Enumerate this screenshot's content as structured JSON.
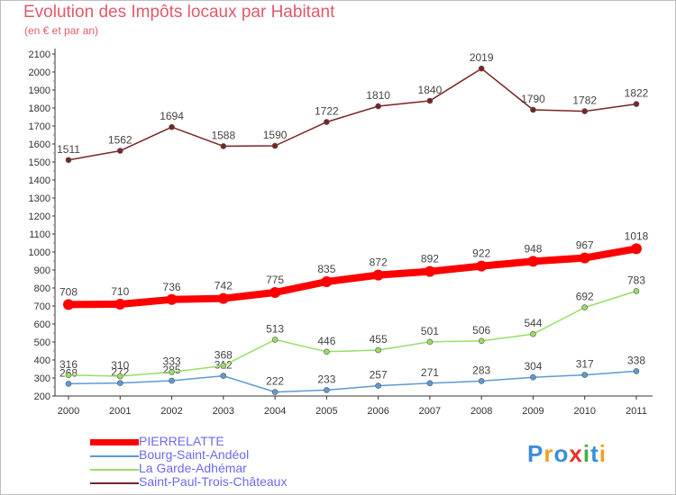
{
  "chart_data": {
    "type": "line",
    "title": "Evolution des Impôts locaux par Habitant",
    "subtitle": "(en € et par an)",
    "x": [
      "2000",
      "2001",
      "2002",
      "2003",
      "2004",
      "2005",
      "2006",
      "2007",
      "2008",
      "2009",
      "2010",
      "2011"
    ],
    "ylim": [
      200,
      2100
    ],
    "yticks": [
      200,
      300,
      400,
      500,
      600,
      700,
      800,
      900,
      1000,
      1100,
      1200,
      1300,
      1400,
      1500,
      1600,
      1700,
      1800,
      1900,
      2000,
      2100
    ],
    "grid": false,
    "legend_position": "bottom-left",
    "series": [
      {
        "name": "PIERRELATTE",
        "color": "#ff0000",
        "values": [
          708,
          710,
          736,
          742,
          775,
          835,
          872,
          892,
          922,
          948,
          967,
          1018
        ]
      },
      {
        "name": "Bourg-Saint-Andéol",
        "color": "#5b9bd5",
        "values": [
          268,
          272,
          285,
          312,
          222,
          233,
          257,
          271,
          283,
          304,
          317,
          338
        ]
      },
      {
        "name": "La Garde-Adhémar",
        "color": "#99dd66",
        "values": [
          316,
          310,
          333,
          368,
          513,
          446,
          455,
          501,
          506,
          544,
          692,
          783
        ]
      },
      {
        "name": "Saint-Paul-Trois-Châteaux",
        "color": "#7a2424",
        "values": [
          1511,
          1562,
          1694,
          1588,
          1590,
          1722,
          1810,
          1840,
          2019,
          1790,
          1782,
          1822
        ]
      }
    ]
  },
  "logo": {
    "text": "Proxiti",
    "letters": [
      "P",
      "r",
      "o",
      "x",
      "i",
      "t",
      "i"
    ],
    "colors": [
      "#3a8fd8",
      "#f0a020",
      "#3a8fd8",
      "#e8302a",
      "#40b040",
      "#3a8fd8",
      "#f0a020"
    ]
  }
}
